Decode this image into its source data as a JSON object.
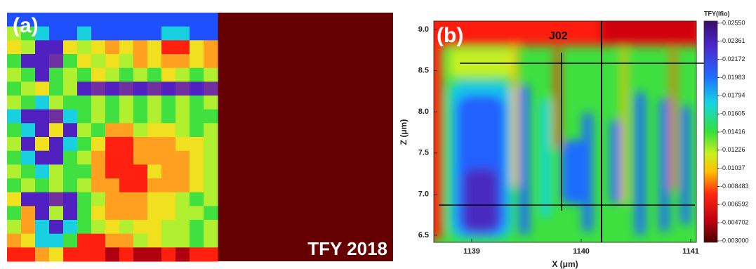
{
  "panel_a": {
    "label": "(a)",
    "caption": "TFY 2018"
  },
  "panel_b": {
    "label": "(b)",
    "annotation": "J02",
    "x_label": "X (μm)",
    "y_label": "Z (μm)",
    "x_ticks": [
      "1139",
      "1140",
      "1141"
    ],
    "y_ticks": [
      "9.0",
      "8.5",
      "8.0",
      "7.5",
      "7.0",
      "6.5"
    ],
    "colorbar_title": "TFY(Ifio)",
    "colorbar_ticks": [
      "-0.02550",
      "-0.02361",
      "-0.02172",
      "-0.01983",
      "-0.01794",
      "-0.01605",
      "-0.01416",
      "-0.01226",
      "-0.01037",
      "-0.008483",
      "-0.006592",
      "-0.004702",
      "-0.003000"
    ]
  }
}
